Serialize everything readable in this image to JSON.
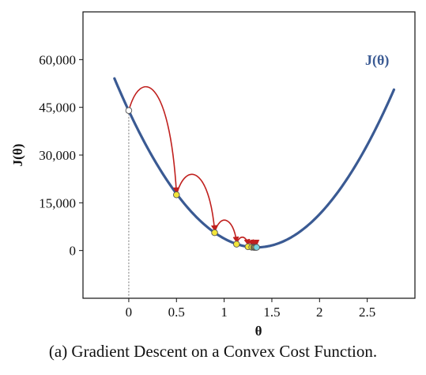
{
  "chart_data": {
    "type": "line",
    "title": "",
    "xlabel": "θ",
    "ylabel": "J(θ)",
    "xlim": [
      -0.48,
      3.0
    ],
    "ylim": [
      -15000,
      75000
    ],
    "x_ticks": [
      0,
      0.5,
      1,
      1.5,
      2,
      2.5
    ],
    "x_tick_labels": [
      "0",
      "0.5",
      "1",
      "1.5",
      "2",
      "2.5"
    ],
    "y_ticks": [
      0,
      15000,
      30000,
      45000,
      60000
    ],
    "y_tick_labels": [
      "0",
      "15,000",
      "30,000",
      "45,000",
      "60,000"
    ],
    "grid": false,
    "series": [
      {
        "name": "J(θ)",
        "function": "quadratic",
        "vertex_x": 1.34,
        "vertex_y": 1000,
        "coefficient": 23900,
        "x_range": [
          -0.15,
          2.78
        ],
        "color": "#3a5a93"
      }
    ],
    "curve_label": "J(θ)",
    "descent_steps": [
      {
        "x": 0.0,
        "y": 44000
      },
      {
        "x": 0.5,
        "y": 17500
      },
      {
        "x": 0.9,
        "y": 5600
      },
      {
        "x": 1.13,
        "y": 2000
      },
      {
        "x": 1.25,
        "y": 1200
      },
      {
        "x": 1.29,
        "y": 1050
      },
      {
        "x": 1.31,
        "y": 1000
      },
      {
        "x": 1.32,
        "y": 1000
      },
      {
        "x": 1.33,
        "y": 1000
      },
      {
        "x": 1.34,
        "y": 1000
      }
    ],
    "arrow_color": "#c0201e",
    "start_marker_color": "#ffffff",
    "step_marker_color": "#f2e53a",
    "end_marker_color": "#7ad3e0",
    "curve_color": "#3a5a93"
  },
  "caption": "(a) Gradient Descent on a Convex Cost Function."
}
